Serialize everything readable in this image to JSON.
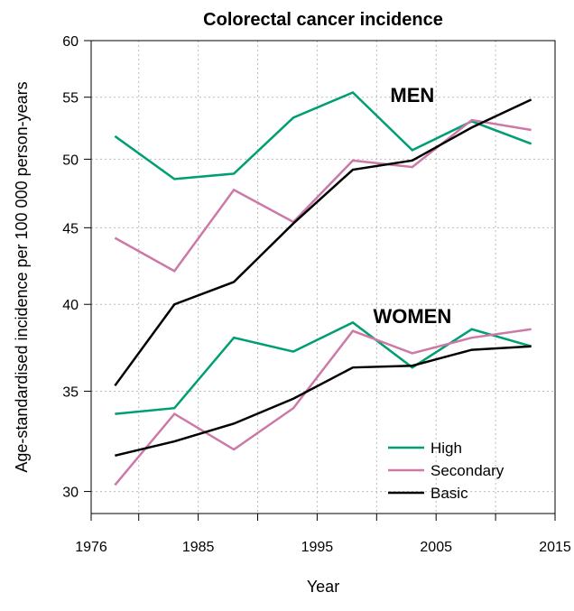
{
  "chart_data": {
    "type": "line",
    "title": "Colorectal cancer incidence",
    "xlabel": "Year",
    "ylabel": "Age-standardised incidence per 100 000 person-years",
    "xlim": [
      1976,
      2015
    ],
    "ylim": [
      29,
      60
    ],
    "y_scale": "log",
    "grid": true,
    "legend_placement": "bottom-right",
    "xticks": [
      1976,
      1985,
      1995,
      2005,
      2015
    ],
    "yticks": [
      30,
      35,
      40,
      45,
      50,
      55,
      60
    ],
    "annotations": [
      {
        "text": "MEN",
        "x": 2003,
        "y": 55.2
      },
      {
        "text": "WOMEN",
        "x": 2003,
        "y": 39.3
      }
    ],
    "x": [
      1978,
      1983,
      1988,
      1993,
      1998,
      2003,
      2008,
      2013
    ],
    "series": [
      {
        "name": "High",
        "group": "men",
        "color": "#009E73",
        "values": [
          51.8,
          48.5,
          48.9,
          53.3,
          55.4,
          50.7,
          53.0,
          51.2
        ]
      },
      {
        "name": "Secondary",
        "group": "men",
        "color": "#CC79A7",
        "values": [
          44.3,
          42.1,
          47.7,
          45.4,
          49.9,
          49.4,
          53.1,
          52.3
        ]
      },
      {
        "name": "Basic",
        "group": "men",
        "color": "#000000",
        "values": [
          35.3,
          40.0,
          41.4,
          45.3,
          49.2,
          49.9,
          52.5,
          54.8
        ]
      },
      {
        "name": "High",
        "group": "women",
        "color": "#009E73",
        "values": [
          33.8,
          34.1,
          38.0,
          37.2,
          38.9,
          36.3,
          38.5,
          37.5
        ]
      },
      {
        "name": "Secondary",
        "group": "women",
        "color": "#CC79A7",
        "values": [
          30.3,
          33.8,
          32.0,
          34.1,
          38.4,
          37.1,
          38.0,
          38.5
        ]
      },
      {
        "name": "Basic",
        "group": "women",
        "color": "#000000",
        "values": [
          31.7,
          32.4,
          33.3,
          34.6,
          36.3,
          36.4,
          37.3,
          37.5
        ]
      }
    ],
    "legend": [
      {
        "name": "High",
        "color": "#009E73"
      },
      {
        "name": "Secondary",
        "color": "#CC79A7"
      },
      {
        "name": "Basic",
        "color": "#000000"
      }
    ]
  }
}
